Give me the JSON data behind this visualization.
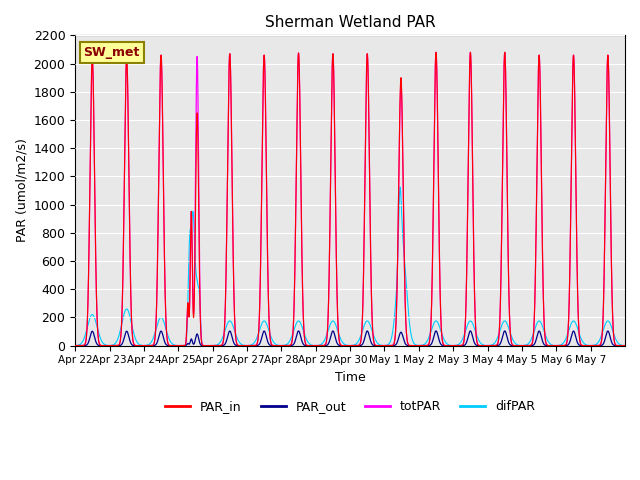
{
  "title": "Sherman Wetland PAR",
  "ylabel": "PAR (umol/m2/s)",
  "xlabel": "Time",
  "annotation": "SW_met",
  "ylim": [
    0,
    2200
  ],
  "legend_labels": [
    "PAR_in",
    "PAR_out",
    "totPAR",
    "difPAR"
  ],
  "line_colors": {
    "PAR_in": "#ff0000",
    "PAR_out": "#00008b",
    "totPAR": "#ff00ff",
    "difPAR": "#00ccff"
  },
  "x_tick_labels": [
    "Apr 22",
    "Apr 23",
    "Apr 24",
    "Apr 25",
    "Apr 26",
    "Apr 27",
    "Apr 28",
    "Apr 29",
    "Apr 30",
    "May 1",
    "May 2",
    "May 3",
    "May 4",
    "May 5",
    "May 6",
    "May 7"
  ],
  "n_days": 16,
  "background_color": "#e8e8e8",
  "grid_color": "#ffffff"
}
